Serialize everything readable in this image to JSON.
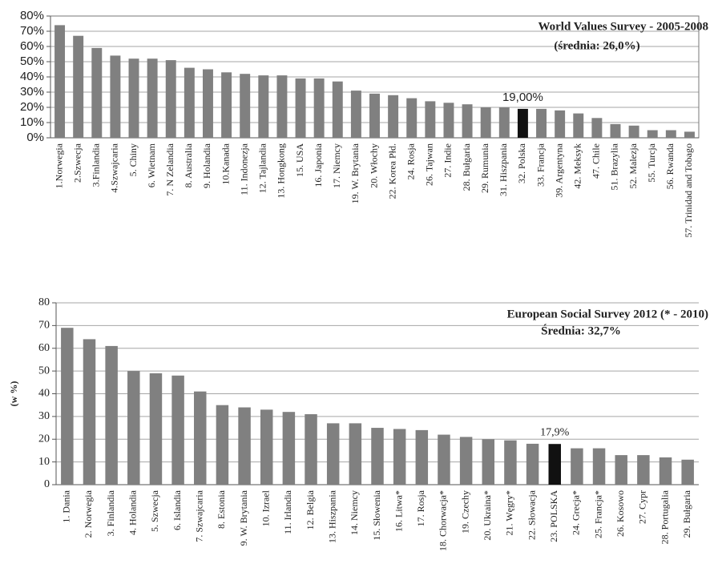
{
  "chart_data": [
    {
      "type": "bar",
      "title": "World Values Survey - 2005-2008",
      "subtitle": "(średnia: 26,0%)",
      "categories": [
        "1.Norwegia",
        "2.Szwecja",
        "3.Finlandia",
        "4.Szwajcaria",
        "5. Chiny",
        "6. Wietnam",
        "7. N Zelandia",
        "8. Australia",
        "9. Holandia",
        "10.Kanada",
        "11. Indonezja",
        "12. Tajlandia",
        "13. Hongkong",
        "15. USA",
        "16. Japonia",
        "17. Niemcy",
        "19. W. Brytania",
        "20. Włochy",
        "22. Korea Płd.",
        "24. Rosja",
        "26. Tajwan",
        "27. Indie",
        "28. Bułgaria",
        "29. Rumunia",
        "31. Hiszpania",
        "32. Polska",
        "33. Francja",
        "39. Argentyna",
        "42. Meksyk",
        "47. Chile",
        "51. Brazylia",
        "52. Malezja",
        "55. Turcja",
        "56. Rwanda",
        "57. Trinidad and Tobago"
      ],
      "values": [
        74,
        67,
        59,
        54,
        52,
        52,
        51,
        46,
        45,
        43,
        42,
        41,
        41,
        39,
        39,
        37,
        31,
        29,
        28,
        26,
        24,
        23,
        22,
        20,
        20,
        19,
        19,
        18,
        16,
        13,
        9,
        8,
        5,
        5,
        4
      ],
      "value_labels": [
        null,
        null,
        null,
        null,
        null,
        null,
        null,
        null,
        null,
        null,
        null,
        null,
        null,
        null,
        null,
        null,
        null,
        null,
        null,
        null,
        null,
        null,
        null,
        null,
        null,
        "19,00%",
        null,
        null,
        null,
        null,
        null,
        null,
        null,
        null,
        null
      ],
      "colors": [
        "#808080",
        "#808080",
        "#808080",
        "#808080",
        "#808080",
        "#808080",
        "#808080",
        "#808080",
        "#808080",
        "#808080",
        "#808080",
        "#808080",
        "#808080",
        "#808080",
        "#808080",
        "#808080",
        "#808080",
        "#808080",
        "#808080",
        "#808080",
        "#808080",
        "#808080",
        "#808080",
        "#808080",
        "#808080",
        "#111111",
        "#808080",
        "#808080",
        "#808080",
        "#808080",
        "#808080",
        "#808080",
        "#808080",
        "#808080",
        "#808080"
      ],
      "ylim": [
        0,
        80
      ],
      "yticks": [
        {
          "value": 0,
          "label": "0%"
        },
        {
          "value": 10,
          "label": "10%"
        },
        {
          "value": 20,
          "label": "20%"
        },
        {
          "value": 30,
          "label": "30%"
        },
        {
          "value": 40,
          "label": "40%"
        },
        {
          "value": 50,
          "label": "50%"
        },
        {
          "value": 60,
          "label": "60%"
        },
        {
          "value": 70,
          "label": "70%"
        },
        {
          "value": 80,
          "label": "80%"
        }
      ],
      "grid": true
    },
    {
      "type": "bar",
      "title": "European Social Survey 2012 (* - 2010)",
      "subtitle": "Średnia: 32,7%",
      "y_label": "(w %)",
      "categories": [
        "1. Dania",
        "2. Norwegia",
        "3. Finlandia",
        "4. Holandia",
        "5. Szwecja",
        "6. Islandia",
        "7. Szwajcaria",
        "8. Estonia",
        "9. W. Brytania",
        "10. Izrael",
        "11. Irlandia",
        "12. Belgia",
        "13. Hiszpania",
        "14. Niemcy",
        "15. Słowenia",
        "16. Litwa*",
        "17. Rosja",
        "18. Chorwacja*",
        "19. Czechy",
        "20. Ukraina*",
        "21. Węgry*",
        "22. Słowacja",
        "23. POLSKA",
        "24. Grecja*",
        "25. Francja*",
        "26. Kosowo",
        "27. Cypr",
        "28. Portugalia",
        "29. Bułgaria"
      ],
      "values": [
        69,
        64,
        61,
        50,
        49,
        48,
        41,
        35,
        34,
        33,
        32,
        31,
        27,
        27,
        25,
        24.5,
        24,
        22,
        21,
        20,
        19.5,
        18,
        17.9,
        16,
        16,
        13,
        13,
        12,
        11
      ],
      "value_labels": [
        null,
        null,
        null,
        null,
        null,
        null,
        null,
        null,
        null,
        null,
        null,
        null,
        null,
        null,
        null,
        null,
        null,
        null,
        null,
        null,
        null,
        null,
        "17,9%",
        null,
        null,
        null,
        null,
        null,
        null
      ],
      "colors": [
        "#808080",
        "#808080",
        "#808080",
        "#808080",
        "#808080",
        "#808080",
        "#808080",
        "#808080",
        "#808080",
        "#808080",
        "#808080",
        "#808080",
        "#808080",
        "#808080",
        "#808080",
        "#808080",
        "#808080",
        "#808080",
        "#808080",
        "#808080",
        "#808080",
        "#808080",
        "#111111",
        "#808080",
        "#808080",
        "#808080",
        "#808080",
        "#808080",
        "#808080"
      ],
      "ylim": [
        0,
        80
      ],
      "yticks": [
        0,
        10,
        20,
        30,
        40,
        50,
        60,
        70,
        80
      ],
      "grid": true
    }
  ]
}
